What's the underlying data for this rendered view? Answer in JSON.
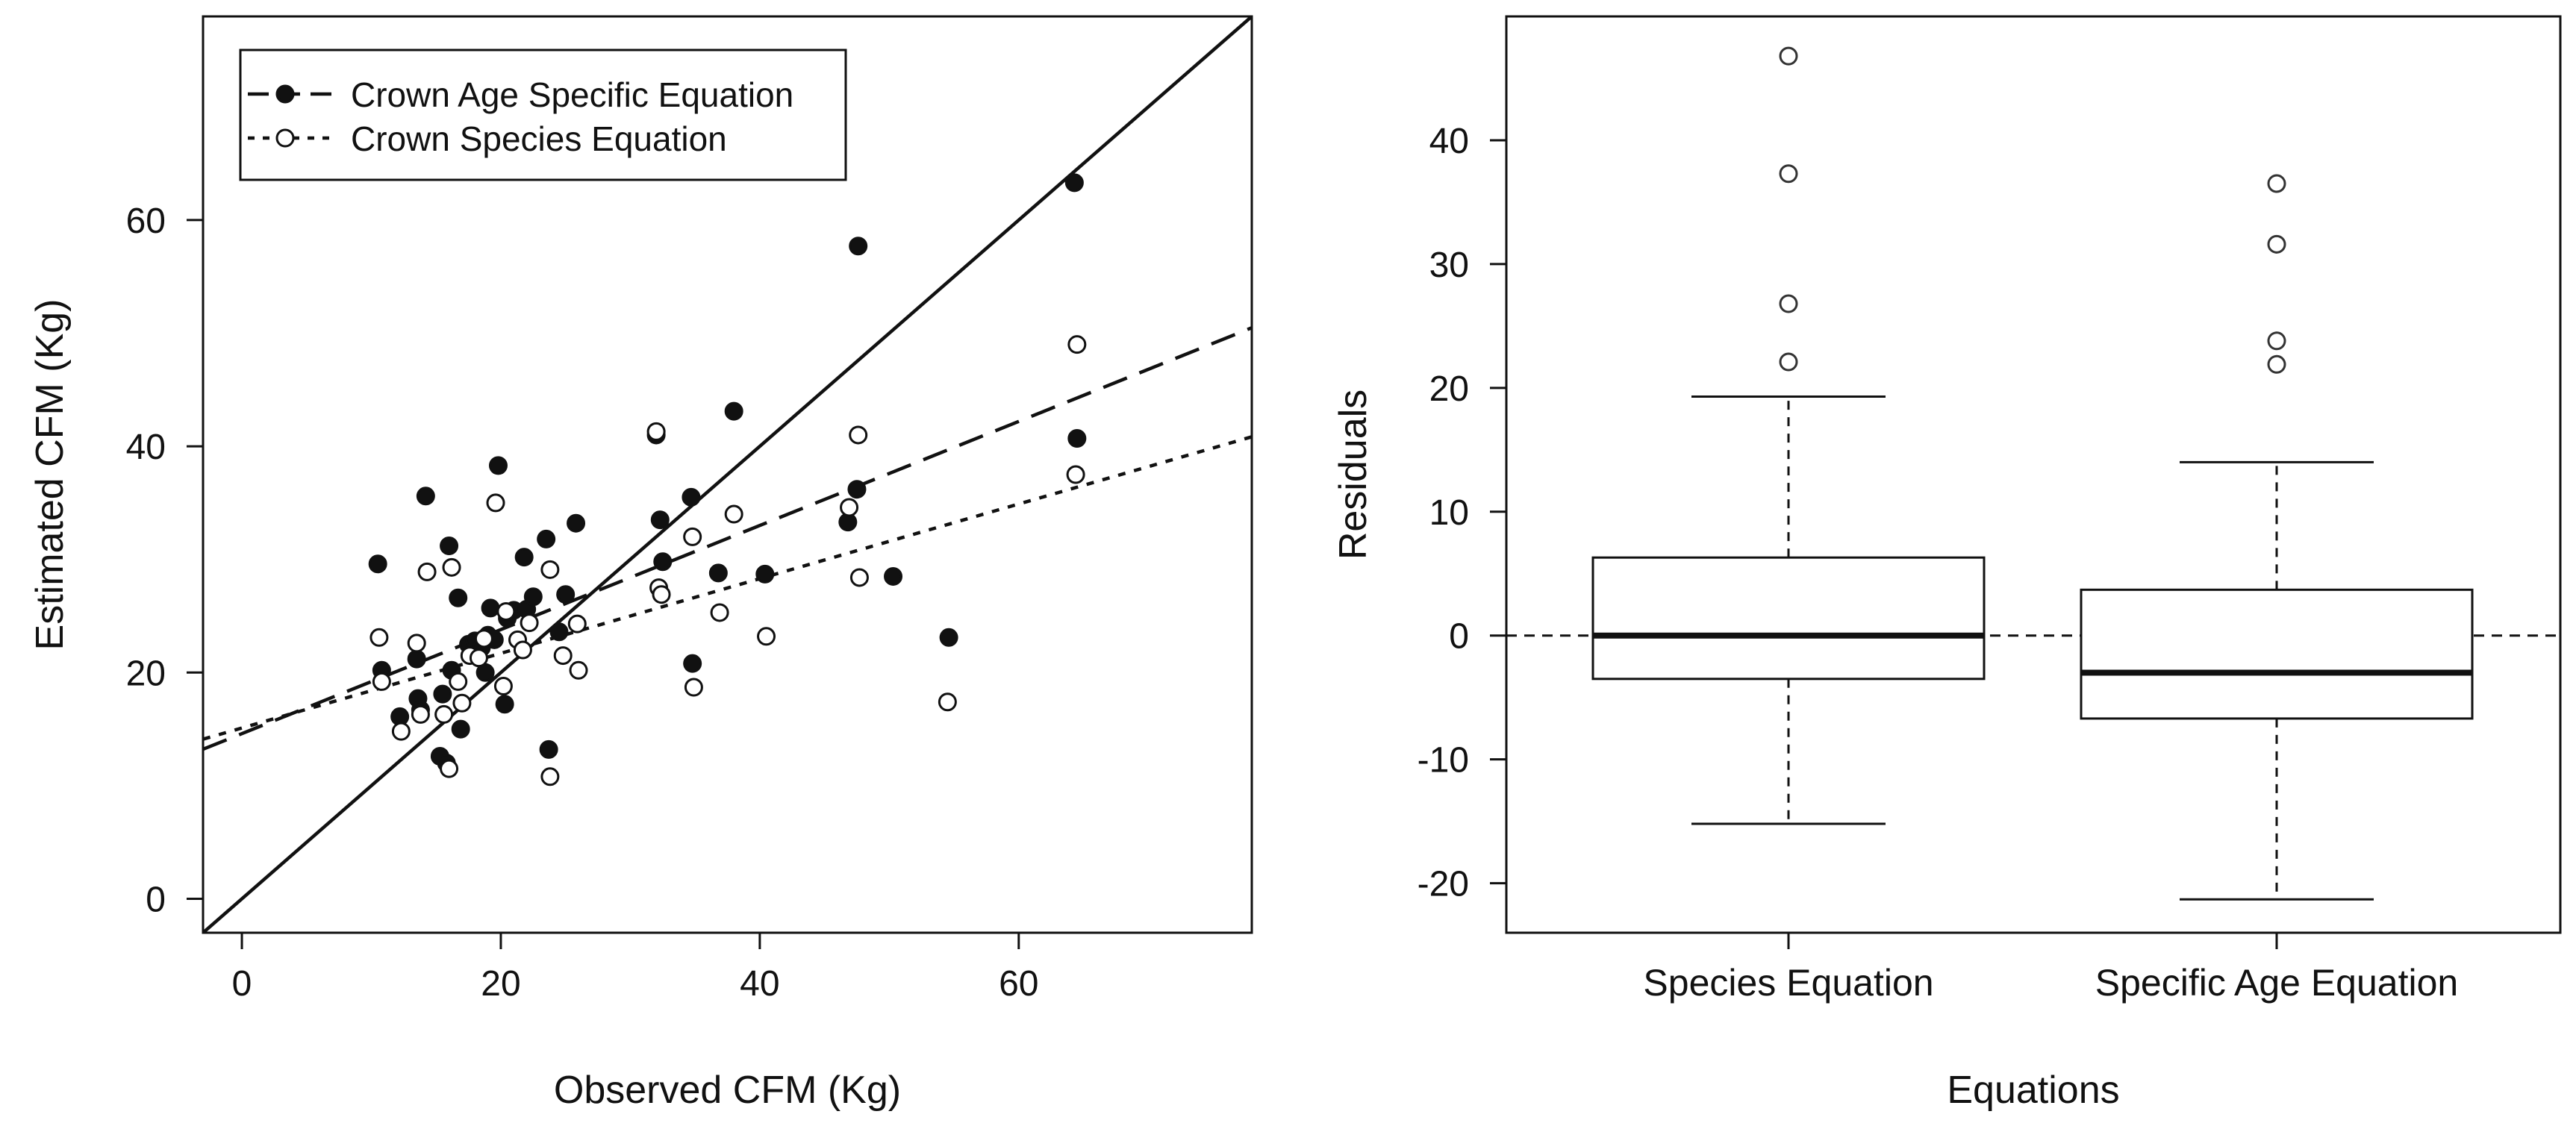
{
  "chart_data": [
    {
      "type": "scatter",
      "xlabel": "Observed CFM  (Kg)",
      "ylabel": "Estimated CFM (Kg)",
      "xlim": [
        -3,
        78
      ],
      "ylim": [
        -3,
        78
      ],
      "xticks": [
        0,
        20,
        40,
        60
      ],
      "yticks": [
        0,
        20,
        40,
        60
      ],
      "legend_position": "top-left",
      "legend": [
        {
          "label": "Crown Age Specific Equation",
          "marker": "filled-circle",
          "line": "dashed"
        },
        {
          "label": "Crown Species Equation",
          "marker": "open-circle",
          "line": "dotted"
        }
      ],
      "series": [
        {
          "name": "Crown Age Specific Equation",
          "marker": "filled",
          "points": [
            [
              10.5,
              29.6
            ],
            [
              10.8,
              20.2
            ],
            [
              12.2,
              16.1
            ],
            [
              13.5,
              21.2
            ],
            [
              13.6,
              17.7
            ],
            [
              13.8,
              16.7
            ],
            [
              14.2,
              35.6
            ],
            [
              15.3,
              12.6
            ],
            [
              15.5,
              18.1
            ],
            [
              15.8,
              12.0
            ],
            [
              16.0,
              31.2
            ],
            [
              16.2,
              20.2
            ],
            [
              16.7,
              26.6
            ],
            [
              16.9,
              15.0
            ],
            [
              17.5,
              22.5
            ],
            [
              18.0,
              22.8
            ],
            [
              18.5,
              22.2
            ],
            [
              18.8,
              20.0
            ],
            [
              19.0,
              23.3
            ],
            [
              19.2,
              25.7
            ],
            [
              19.5,
              22.9
            ],
            [
              19.8,
              38.3
            ],
            [
              20.3,
              17.2
            ],
            [
              20.5,
              24.8
            ],
            [
              21.0,
              25.5
            ],
            [
              21.8,
              30.2
            ],
            [
              22.0,
              25.6
            ],
            [
              22.5,
              26.7
            ],
            [
              23.5,
              31.8
            ],
            [
              23.7,
              13.2
            ],
            [
              24.5,
              23.6
            ],
            [
              25.0,
              26.9
            ],
            [
              25.8,
              33.2
            ],
            [
              32.0,
              41.0
            ],
            [
              32.3,
              33.5
            ],
            [
              32.5,
              29.8
            ],
            [
              34.7,
              35.5
            ],
            [
              34.8,
              20.8
            ],
            [
              36.8,
              28.8
            ],
            [
              38.0,
              43.1
            ],
            [
              40.4,
              28.7
            ],
            [
              46.8,
              33.3
            ],
            [
              47.5,
              36.2
            ],
            [
              47.6,
              57.7
            ],
            [
              50.3,
              28.5
            ],
            [
              54.6,
              23.1
            ],
            [
              64.3,
              63.3
            ],
            [
              64.5,
              40.7
            ]
          ]
        },
        {
          "name": "Crown Species Equation",
          "marker": "open",
          "points": [
            [
              10.6,
              23.1
            ],
            [
              10.8,
              19.2
            ],
            [
              12.3,
              14.8
            ],
            [
              13.5,
              22.6
            ],
            [
              13.8,
              16.3
            ],
            [
              14.3,
              28.9
            ],
            [
              15.6,
              16.3
            ],
            [
              16.0,
              11.5
            ],
            [
              16.2,
              29.3
            ],
            [
              16.7,
              19.2
            ],
            [
              17.0,
              17.3
            ],
            [
              17.6,
              21.5
            ],
            [
              18.3,
              21.3
            ],
            [
              18.7,
              23.0
            ],
            [
              19.6,
              35.0
            ],
            [
              20.2,
              18.8
            ],
            [
              20.4,
              25.4
            ],
            [
              21.3,
              22.9
            ],
            [
              21.7,
              22.0
            ],
            [
              22.2,
              24.4
            ],
            [
              23.8,
              29.1
            ],
            [
              23.8,
              10.8
            ],
            [
              24.8,
              21.5
            ],
            [
              25.9,
              24.3
            ],
            [
              26.0,
              20.2
            ],
            [
              32.0,
              41.3
            ],
            [
              32.2,
              27.5
            ],
            [
              32.4,
              26.9
            ],
            [
              34.8,
              32.0
            ],
            [
              34.9,
              18.7
            ],
            [
              36.9,
              25.3
            ],
            [
              38.0,
              34.0
            ],
            [
              40.5,
              23.2
            ],
            [
              46.9,
              34.6
            ],
            [
              47.6,
              41.0
            ],
            [
              47.7,
              28.4
            ],
            [
              54.5,
              17.4
            ],
            [
              64.5,
              49.0
            ],
            [
              64.4,
              37.5
            ]
          ]
        }
      ],
      "fit_lines": [
        {
          "name": "1:1 reference",
          "style": "solid",
          "intercept": 0,
          "slope": 1
        },
        {
          "name": "Crown Age Specific Equation fit",
          "style": "dashed",
          "intercept": 14.6,
          "slope": 0.46
        },
        {
          "name": "Crown Species Equation fit",
          "style": "dotted",
          "intercept": 15.1,
          "slope": 0.33
        }
      ]
    },
    {
      "type": "boxplot",
      "xlabel": "Equations",
      "ylabel": "Residuals",
      "ylim": [
        -24,
        50
      ],
      "yticks": [
        -20,
        -10,
        0,
        10,
        20,
        30,
        40
      ],
      "reference_line": {
        "y": 0,
        "style": "dashed"
      },
      "boxes": [
        {
          "label": "Species Equation",
          "whisker_low": -15.2,
          "q1": -3.5,
          "median": 0,
          "q3": 6.3,
          "whisker_high": 19.3,
          "outliers": [
            22.1,
            26.8,
            37.3,
            46.8
          ]
        },
        {
          "label": "Specific Age Equation",
          "whisker_low": -21.3,
          "q1": -6.7,
          "median": -3,
          "q3": 3.7,
          "whisker_high": 14.0,
          "outliers": [
            21.9,
            23.8,
            31.6,
            36.5
          ]
        }
      ]
    }
  ]
}
